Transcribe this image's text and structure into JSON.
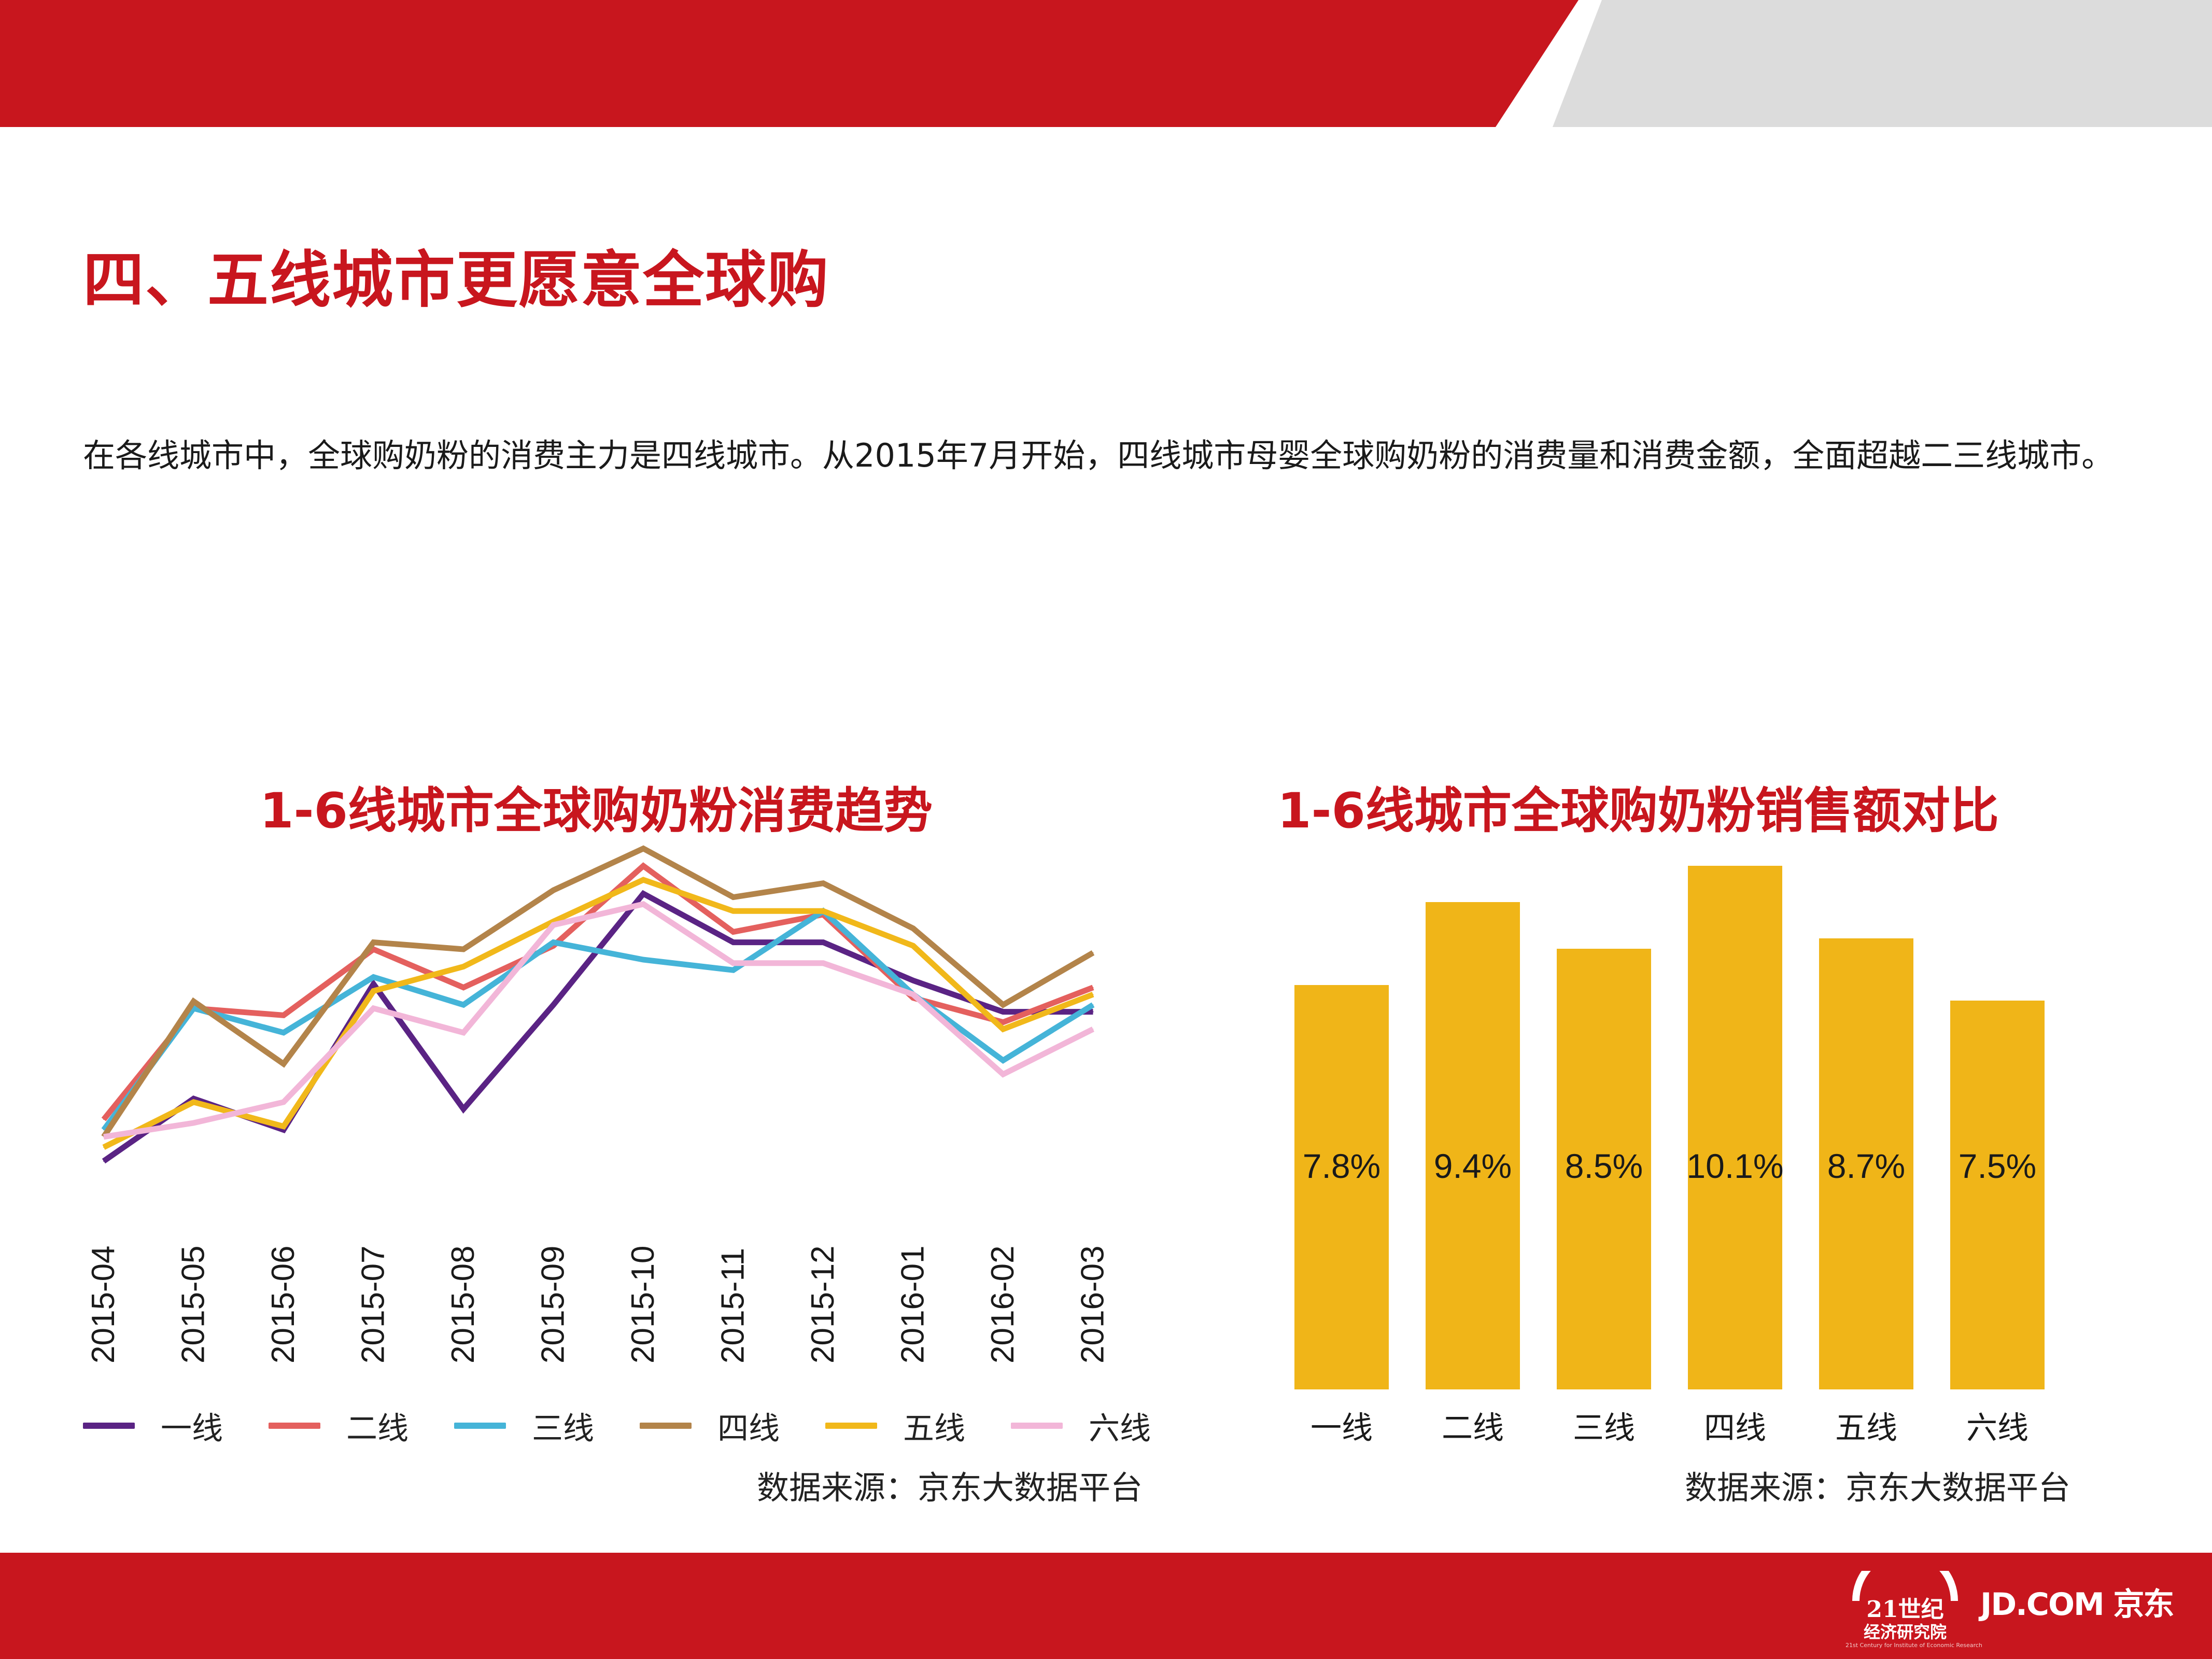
{
  "colors": {
    "brand_red": "#c8161e",
    "banner_gray": "#dcdcdc",
    "bar_fill": "#f0b518",
    "axis": "#1a1a1a"
  },
  "page": {
    "title": "四、五线城市更愿意全球购",
    "intro": "在各线城市中，全球购奶粉的消费主力是四线城市。从2015年7月开始，四线城市母婴全球购奶粉的消费量和消费金额，全面超越二三线城市。"
  },
  "chart_data": [
    {
      "type": "line",
      "title": "1-6线城市全球购奶粉消费趋势",
      "x": [
        "2015-04",
        "2015-05",
        "2015-06",
        "2015-07",
        "2015-08",
        "2015-09",
        "2015-10",
        "2015-11",
        "2015-12",
        "2016-01",
        "2016-02",
        "2016-03"
      ],
      "xlabel": "",
      "ylabel": "",
      "ylim": [
        0,
        100
      ],
      "y_axis_shown": false,
      "grid": false,
      "legend_position": "bottom",
      "series": [
        {
          "name": "一线",
          "color": "#5a2384",
          "values": [
            9,
            27,
            18,
            60,
            24,
            54,
            86,
            72,
            72,
            61,
            52,
            52
          ]
        },
        {
          "name": "二线",
          "color": "#e4605e",
          "values": [
            21,
            53,
            51,
            70,
            59,
            71,
            94,
            75,
            80,
            56,
            49,
            59
          ]
        },
        {
          "name": "三线",
          "color": "#45b4d8",
          "values": [
            18,
            53,
            46,
            62,
            54,
            72,
            67,
            64,
            81,
            57,
            38,
            54
          ]
        },
        {
          "name": "四线",
          "color": "#b3844a",
          "values": [
            16,
            55,
            37,
            72,
            70,
            87,
            99,
            85,
            89,
            76,
            54,
            69
          ]
        },
        {
          "name": "五线",
          "color": "#f1b81a",
          "values": [
            13,
            26,
            19,
            58,
            65,
            78,
            90,
            81,
            81,
            71,
            47,
            57
          ]
        },
        {
          "name": "六线",
          "color": "#f2b6d8",
          "values": [
            16,
            20,
            26,
            53,
            46,
            77,
            83,
            66,
            66,
            57,
            34,
            47
          ]
        }
      ],
      "source": "数据来源：京东大数据平台"
    },
    {
      "type": "bar",
      "title": "1-6线城市全球购奶粉销售额对比",
      "categories": [
        "一线",
        "二线",
        "三线",
        "四线",
        "五线",
        "六线"
      ],
      "values": [
        7.8,
        9.4,
        8.5,
        10.1,
        8.7,
        7.5
      ],
      "labels": [
        "7.8%",
        "9.4%",
        "8.5%",
        "10.1%",
        "8.7%",
        "7.5%"
      ],
      "units": "%",
      "ylim": [
        0,
        10.1
      ],
      "xlabel": "",
      "ylabel": "",
      "grid": false,
      "source": "数据来源：京东大数据平台"
    }
  ],
  "footer": {
    "logo_21_title": "21世纪",
    "logo_21_subtitle": "经济研究院",
    "logo_21_tagline": "21st Century for Institute of Economic Research",
    "logo_jd": "JD.COM 京东"
  }
}
